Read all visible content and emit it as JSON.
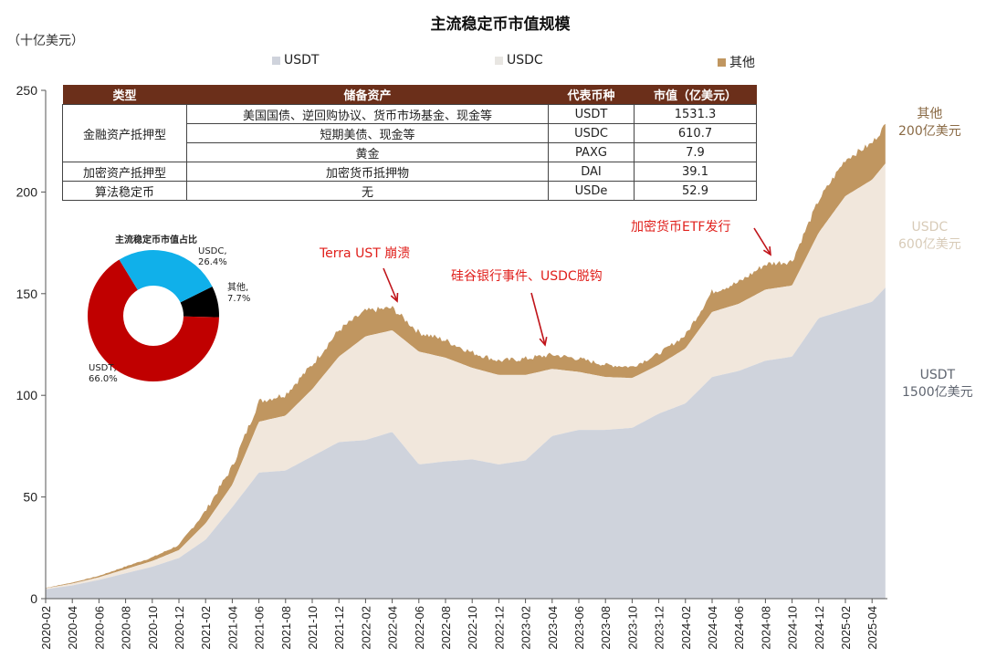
{
  "title": "主流稳定币市值规模",
  "unit_label": "（十亿美元）",
  "legend": [
    {
      "label": "USDT",
      "color": "#cfd3dc"
    },
    {
      "label": "USDC",
      "color": "#ede6dc"
    },
    {
      "label": "其他",
      "color": "#c09660"
    }
  ],
  "colors": {
    "usdt": "#cfd3dc",
    "usdc": "#f1e7dc",
    "other": "#c09660",
    "annotation": "#e0201c",
    "table_header": "#6b2f1a"
  },
  "table": {
    "headers": [
      "类型",
      "储备资产",
      "代表币种",
      "市值（亿美元）"
    ],
    "groups": [
      {
        "type": "金融资产抵押型",
        "rows": [
          {
            "reserve": "美国国债、逆回购协议、货币市场基金、现金等",
            "coin": "USDT",
            "value": "1531.3"
          },
          {
            "reserve": "短期美债、现金等",
            "coin": "USDC",
            "value": "610.7"
          },
          {
            "reserve": "黄金",
            "coin": "PAXG",
            "value": "7.9"
          }
        ]
      },
      {
        "type": "加密资产抵押型",
        "rows": [
          {
            "reserve": "加密货币抵押物",
            "coin": "DAI",
            "value": "39.1"
          }
        ]
      },
      {
        "type": "算法稳定币",
        "rows": [
          {
            "reserve": "无",
            "coin": "USDe",
            "value": "52.9"
          }
        ]
      }
    ]
  },
  "pie": {
    "title": "主流稳定币市值占比",
    "slices": [
      {
        "label": "USDT,",
        "pct": "66.0%",
        "value": 66.0,
        "color": "#c00000"
      },
      {
        "label": "USDC,",
        "pct": "26.4%",
        "value": 26.4,
        "color": "#10b0ea"
      },
      {
        "label": "其他,",
        "pct": "7.7%",
        "value": 7.7,
        "color": "#000000"
      }
    ]
  },
  "annotations": [
    {
      "text": "Terra UST 崩溃"
    },
    {
      "text": "硅谷银行事件、USDC脱钩"
    },
    {
      "text": "加密货币ETF发行"
    }
  ],
  "side_labels": {
    "other": {
      "line1": "其他",
      "line2": "200亿美元"
    },
    "usdc": {
      "line1": "USDC",
      "line2": "600亿美元"
    },
    "usdt": {
      "line1": "USDT",
      "line2": "1500亿美元"
    }
  },
  "chart_data": [
    {
      "type": "area",
      "stacked": true,
      "title": "主流稳定币市值规模",
      "ylabel": "（十亿美元）",
      "xlabel": "",
      "ylim": [
        0,
        250
      ],
      "yticks": [
        0,
        50,
        100,
        150,
        200,
        250
      ],
      "xticks": [
        "2020-02",
        "2020-04",
        "2020-06",
        "2020-08",
        "2020-10",
        "2020-12",
        "2021-02",
        "2021-04",
        "2021-06",
        "2021-08",
        "2021-10",
        "2021-12",
        "2022-02",
        "2022-04",
        "2022-06",
        "2022-08",
        "2022-10",
        "2022-12",
        "2023-02",
        "2023-04",
        "2023-06",
        "2023-08",
        "2023-10",
        "2023-12",
        "2024-02",
        "2024-04",
        "2024-06",
        "2024-08",
        "2024-10",
        "2024-12",
        "2025-02",
        "2025-04"
      ],
      "x": [
        "2020-02",
        "2020-04",
        "2020-06",
        "2020-08",
        "2020-10",
        "2020-12",
        "2021-02",
        "2021-04",
        "2021-06",
        "2021-08",
        "2021-10",
        "2021-12",
        "2022-02",
        "2022-04",
        "2022-06",
        "2022-08",
        "2022-10",
        "2022-12",
        "2023-02",
        "2023-04",
        "2023-06",
        "2023-08",
        "2023-10",
        "2023-12",
        "2024-02",
        "2024-04",
        "2024-06",
        "2024-08",
        "2024-10",
        "2024-12",
        "2025-02",
        "2025-04",
        "2025-05"
      ],
      "series": [
        {
          "name": "USDT",
          "values": [
            4.6,
            6.5,
            9.2,
            12.5,
            15.7,
            20.0,
            29.0,
            45.0,
            62.0,
            63.0,
            70.0,
            77.0,
            78.0,
            82.0,
            66.0,
            67.5,
            68.5,
            66.0,
            68.0,
            80.0,
            83.0,
            83.0,
            84.0,
            91.0,
            96.0,
            109.0,
            112.0,
            117.0,
            119.0,
            138.0,
            142.0,
            146.0,
            153.0
          ]
        },
        {
          "name": "USDC",
          "values": [
            0.5,
            0.9,
            1.3,
            2.0,
            2.8,
            3.9,
            8.0,
            11.0,
            25.0,
            27.0,
            33.0,
            42.0,
            51.0,
            50.0,
            55.5,
            51.0,
            45.0,
            44.0,
            42.0,
            33.0,
            28.5,
            26.0,
            24.5,
            24.0,
            27.0,
            32.0,
            33.0,
            35.0,
            35.0,
            42.0,
            56.0,
            60.0,
            61.0
          ]
        },
        {
          "name": "其他",
          "values": [
            0.2,
            0.5,
            0.7,
            1.3,
            1.8,
            2.5,
            6.2,
            9.0,
            10.0,
            10.5,
            12.0,
            13.0,
            12.5,
            11.0,
            9.5,
            8.5,
            7.5,
            7.0,
            8.0,
            7.0,
            6.5,
            6.0,
            5.5,
            5.5,
            6.5,
            10.0,
            10.5,
            12.5,
            12.0,
            16.0,
            18.0,
            18.0,
            19.0
          ]
        }
      ],
      "annotations": [
        {
          "text": "Terra UST 崩溃",
          "x": "2022-05"
        },
        {
          "text": "硅谷银行事件、USDC脱钩",
          "x": "2023-03"
        },
        {
          "text": "加密货币ETF发行",
          "x": "2024-08"
        }
      ],
      "end_labels": [
        "其他 200亿美元",
        "USDC 600亿美元",
        "USDT 1500亿美元"
      ],
      "legend_position": "top"
    },
    {
      "type": "pie",
      "title": "主流稳定币市值占比",
      "categories": [
        "USDT",
        "USDC",
        "其他"
      ],
      "values": [
        66.0,
        26.4,
        7.7
      ],
      "donut": true
    }
  ]
}
